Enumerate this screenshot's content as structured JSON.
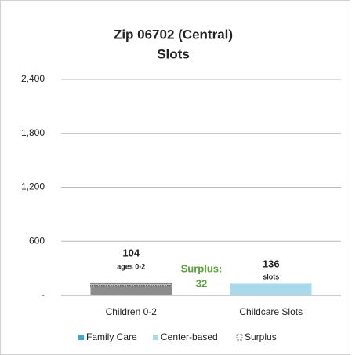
{
  "chart_data": {
    "type": "bar",
    "title": [
      "Zip 06702 (Central)",
      "Slots"
    ],
    "categories": [
      "Children 0-2",
      "Childcare Slots"
    ],
    "values": [
      104,
      null
    ],
    "color": "#8c8c8c",
    "series": [
      {
        "name": "Family Care",
        "color": "#4aa3c8",
        "values": [
          null,
          0
        ]
      },
      {
        "name": "Center-based",
        "color": "#a9d9ea",
        "values": [
          null,
          136
        ]
      },
      {
        "name": "Surplus",
        "color": "#777777",
        "values": [
          32,
          null
        ]
      }
    ],
    "annotations": [
      "ages 0-2",
      "slots",
      "Surplus:"
    ],
    "ylim": [
      0,
      2400
    ],
    "yticks": [
      {
        "value": 0,
        "label": "-"
      },
      600,
      {
        "value": 1200,
        "label": "1,200"
      },
      {
        "value": 1800,
        "label": "1,800"
      },
      {
        "value": 2400,
        "label": "2,400"
      }
    ],
    "grid": true
  }
}
